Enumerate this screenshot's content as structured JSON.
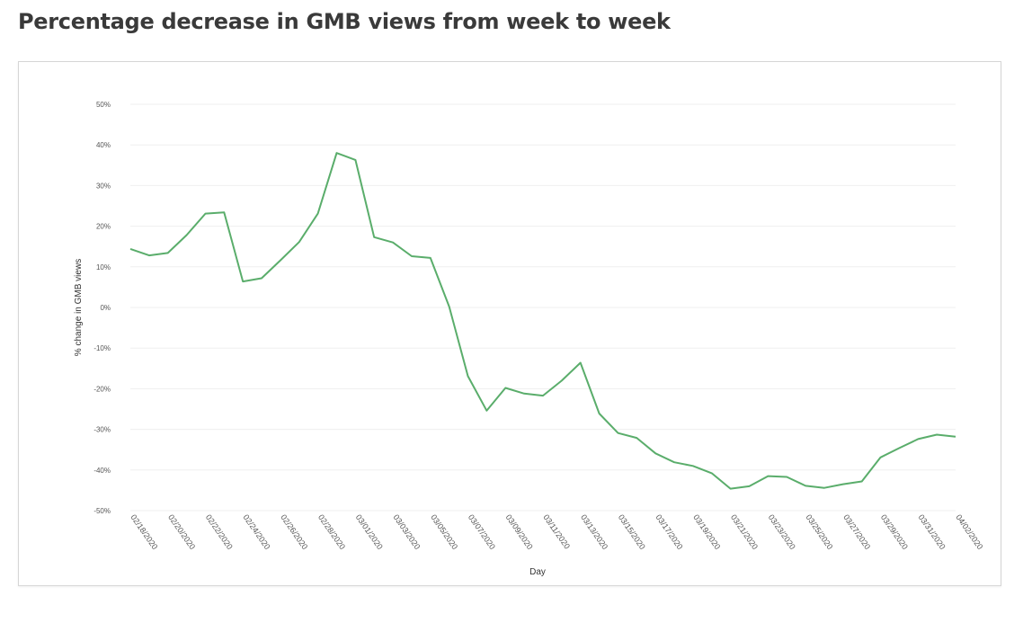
{
  "page": {
    "title": "Percentage decrease in GMB views from week to week"
  },
  "chart_data": {
    "type": "line",
    "title": "",
    "xlabel": "Day",
    "ylabel": "% change in GMB views",
    "ylim": [
      -50,
      50
    ],
    "y_ticks": [
      50,
      40,
      30,
      20,
      10,
      0,
      -10,
      -20,
      -30,
      -40,
      -50
    ],
    "y_tick_labels": [
      "50%",
      "40%",
      "30%",
      "20%",
      "10%",
      "0%",
      "-10%",
      "-20%",
      "-30%",
      "-40%",
      "-50%"
    ],
    "x_tick_labels": [
      "02/18/2020",
      "02/20/2020",
      "02/22/2020",
      "02/24/2020",
      "02/26/2020",
      "02/28/2020",
      "03/01/2020",
      "03/03/2020",
      "03/05/2020",
      "03/07/2020",
      "03/09/2020",
      "03/11/2020",
      "03/13/2020",
      "03/15/2020",
      "03/17/2020",
      "03/19/2020",
      "03/21/2020",
      "03/23/2020",
      "03/25/2020",
      "03/27/2020",
      "03/29/2020",
      "03/31/2020",
      "04/02/2020"
    ],
    "grid": true,
    "line_color": "#5aad6b",
    "series": [
      {
        "x": [
          "02/18/2020",
          "02/19/2020",
          "02/20/2020",
          "02/21/2020",
          "02/22/2020",
          "02/23/2020",
          "02/24/2020",
          "02/25/2020",
          "02/26/2020",
          "02/27/2020",
          "02/28/2020",
          "02/29/2020",
          "03/01/2020",
          "03/02/2020",
          "03/03/2020",
          "03/04/2020",
          "03/05/2020",
          "03/06/2020",
          "03/07/2020",
          "03/08/2020",
          "03/09/2020",
          "03/10/2020",
          "03/11/2020",
          "03/12/2020",
          "03/13/2020",
          "03/14/2020",
          "03/15/2020",
          "03/16/2020",
          "03/17/2020",
          "03/18/2020",
          "03/19/2020",
          "03/20/2020",
          "03/21/2020",
          "03/22/2020",
          "03/23/2020",
          "03/24/2020",
          "03/25/2020",
          "03/26/2020",
          "03/27/2020",
          "03/28/2020",
          "03/29/2020",
          "03/30/2020",
          "03/31/2020",
          "04/01/2020",
          "04/02/2020"
        ],
        "values": [
          14.4,
          12.8,
          13.4,
          17.8,
          23.1,
          23.4,
          6.4,
          7.2,
          11.6,
          16.1,
          23.1,
          38.0,
          36.3,
          17.3,
          16.0,
          12.6,
          12.2,
          0.2,
          -16.9,
          -25.4,
          -19.8,
          -21.2,
          -21.7,
          -18.0,
          -13.6,
          -26.1,
          -30.9,
          -32.1,
          -35.9,
          -38.1,
          -39.0,
          -40.8,
          -44.6,
          -44.0,
          -41.5,
          -41.7,
          -43.9,
          -44.4,
          -43.5,
          -42.8,
          -36.9,
          -34.6,
          -32.4,
          -31.3,
          -31.8
        ]
      }
    ]
  }
}
